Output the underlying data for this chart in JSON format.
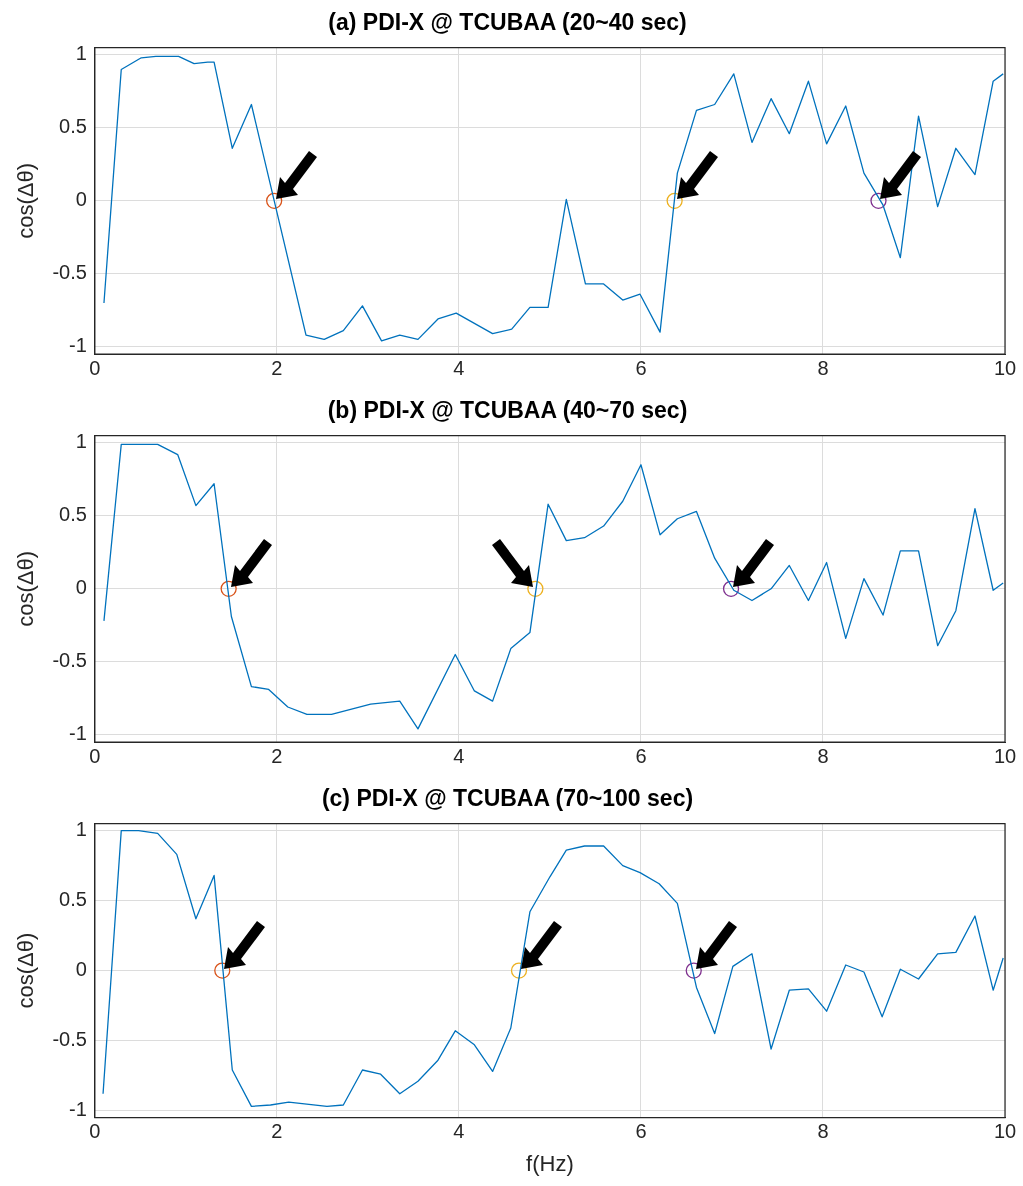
{
  "chart_data": [
    {
      "type": "line",
      "title": "(a) PDI-X @ TCUBAA (20~40 sec)",
      "ylabel": "cos(Δθ)",
      "xlim": [
        0,
        10
      ],
      "ylim": [
        -1.05,
        1.05
      ],
      "xticks": [
        0,
        2,
        4,
        6,
        8,
        10
      ],
      "yticks": [
        -1,
        -0.5,
        0,
        0.5,
        1
      ],
      "grid": true,
      "series": [
        {
          "type": "line",
          "color": "#0072bd",
          "marker": "none",
          "x": [
            0.1,
            0.29,
            0.51,
            0.67,
            0.92,
            1.09,
            1.24,
            1.31,
            1.51,
            1.72,
            2.32,
            2.52,
            2.73,
            2.94,
            3.15,
            3.35,
            3.55,
            3.77,
            3.97,
            4.37,
            4.58,
            4.78,
            4.98,
            5.18,
            5.39,
            5.59,
            5.8,
            5.99,
            6.21,
            6.4,
            6.61,
            6.81,
            7.02,
            7.22,
            7.43,
            7.63,
            7.84,
            8.04,
            8.25,
            8.45,
            8.66,
            8.85,
            9.05,
            9.26,
            9.46,
            9.67,
            9.87,
            9.98
          ],
          "values": [
            -0.7,
            0.9,
            0.98,
            0.99,
            0.99,
            0.94,
            0.95,
            0.95,
            0.36,
            0.66,
            -0.92,
            -0.95,
            -0.89,
            -0.72,
            -0.96,
            -0.92,
            -0.95,
            -0.81,
            -0.77,
            -0.91,
            -0.88,
            -0.73,
            -0.73,
            0.01,
            -0.57,
            -0.57,
            -0.68,
            -0.64,
            -0.9,
            0.19,
            0.62,
            0.66,
            0.87,
            0.4,
            0.7,
            0.46,
            0.82,
            0.39,
            0.65,
            0.19,
            -0.03,
            -0.39,
            0.58,
            -0.04,
            0.36,
            0.18,
            0.82,
            0.87
          ]
        },
        {
          "type": "scatter",
          "color": "#d95319",
          "marker": "circle",
          "x": [
            1.97
          ],
          "values": [
            0
          ]
        },
        {
          "type": "scatter",
          "color": "#edb120",
          "marker": "circle",
          "x": [
            6.37
          ],
          "values": [
            0
          ]
        },
        {
          "type": "scatter",
          "color": "#7e2f8e",
          "marker": "circle",
          "x": [
            8.61
          ],
          "values": [
            0
          ]
        }
      ]
    },
    {
      "type": "line",
      "title": "(b) PDI-X @ TCUBAA (40~70 sec)",
      "ylabel": "cos(Δθ)",
      "xlim": [
        0,
        10
      ],
      "ylim": [
        -1.05,
        1.05
      ],
      "xticks": [
        0,
        2,
        4,
        6,
        8,
        10
      ],
      "yticks": [
        -1,
        -0.5,
        0,
        0.5,
        1
      ],
      "grid": true,
      "series": [
        {
          "type": "line",
          "color": "#0072bd",
          "marker": "none",
          "x": [
            0.1,
            0.29,
            0.69,
            0.91,
            1.11,
            1.31,
            1.5,
            1.72,
            1.91,
            2.12,
            2.33,
            2.6,
            3.03,
            3.35,
            3.55,
            3.96,
            4.17,
            4.37,
            4.57,
            4.78,
            4.98,
            5.18,
            5.38,
            5.59,
            5.8,
            6.0,
            6.21,
            6.4,
            6.61,
            6.81,
            7.02,
            7.22,
            7.43,
            7.63,
            7.84,
            8.04,
            8.25,
            8.45,
            8.66,
            8.85,
            9.05,
            9.26,
            9.46,
            9.67,
            9.87,
            9.98
          ],
          "values": [
            -0.22,
            0.99,
            0.99,
            0.92,
            0.57,
            0.72,
            -0.19,
            -0.67,
            -0.69,
            -0.81,
            -0.86,
            -0.86,
            -0.79,
            -0.77,
            -0.96,
            -0.45,
            -0.7,
            -0.77,
            -0.41,
            -0.3,
            0.58,
            0.33,
            0.35,
            0.43,
            0.6,
            0.85,
            0.37,
            0.48,
            0.53,
            0.21,
            -0.01,
            -0.08,
            0.0,
            0.16,
            -0.08,
            0.18,
            -0.34,
            0.07,
            -0.18,
            0.26,
            0.26,
            -0.39,
            -0.15,
            0.55,
            -0.01,
            0.04
          ]
        },
        {
          "type": "scatter",
          "color": "#d95319",
          "marker": "circle",
          "x": [
            1.47
          ],
          "values": [
            0
          ]
        },
        {
          "type": "scatter",
          "color": "#edb120",
          "marker": "circle",
          "x": [
            4.84
          ],
          "values": [
            0
          ]
        },
        {
          "type": "scatter",
          "color": "#7e2f8e",
          "marker": "circle",
          "x": [
            6.99
          ],
          "values": [
            0
          ]
        }
      ]
    },
    {
      "type": "line",
      "title": "(c) PDI-X @ TCUBAA (70~100 sec)",
      "xlabel": "f(Hz)",
      "ylabel": "cos(Δθ)",
      "xlim": [
        0,
        10
      ],
      "ylim": [
        -1.05,
        1.05
      ],
      "xticks": [
        0,
        2,
        4,
        6,
        8,
        10
      ],
      "yticks": [
        -1,
        -0.5,
        0,
        0.5,
        1
      ],
      "grid": true,
      "series": [
        {
          "type": "line",
          "color": "#0072bd",
          "marker": "none",
          "x": [
            0.09,
            0.29,
            0.48,
            0.69,
            0.9,
            1.11,
            1.31,
            1.51,
            1.72,
            1.93,
            2.13,
            2.55,
            2.73,
            2.94,
            3.14,
            3.35,
            3.55,
            3.77,
            3.96,
            4.17,
            4.37,
            4.57,
            4.78,
            5.0,
            5.18,
            5.38,
            5.59,
            5.8,
            5.99,
            6.2,
            6.4,
            6.61,
            6.81,
            7.01,
            7.22,
            7.43,
            7.63,
            7.84,
            8.04,
            8.25,
            8.45,
            8.65,
            8.85,
            9.05,
            9.26,
            9.46,
            9.67,
            9.87,
            9.98
          ],
          "values": [
            -0.88,
            1.0,
            1.0,
            0.98,
            0.83,
            0.37,
            0.68,
            -0.71,
            -0.97,
            -0.96,
            -0.94,
            -0.97,
            -0.96,
            -0.71,
            -0.74,
            -0.88,
            -0.79,
            -0.64,
            -0.43,
            -0.53,
            -0.72,
            -0.41,
            0.42,
            0.67,
            0.86,
            0.89,
            0.89,
            0.75,
            0.7,
            0.62,
            0.48,
            -0.12,
            -0.45,
            0.03,
            0.12,
            -0.56,
            -0.14,
            -0.13,
            -0.29,
            0.04,
            -0.01,
            -0.33,
            0.01,
            -0.06,
            0.12,
            0.13,
            0.39,
            -0.14,
            0.09
          ]
        },
        {
          "type": "scatter",
          "color": "#d95319",
          "marker": "circle",
          "x": [
            1.4
          ],
          "values": [
            0
          ]
        },
        {
          "type": "scatter",
          "color": "#edb120",
          "marker": "circle",
          "x": [
            4.66
          ],
          "values": [
            0
          ]
        },
        {
          "type": "scatter",
          "color": "#7e2f8e",
          "marker": "circle",
          "x": [
            6.58
          ],
          "values": [
            0
          ]
        }
      ]
    }
  ]
}
